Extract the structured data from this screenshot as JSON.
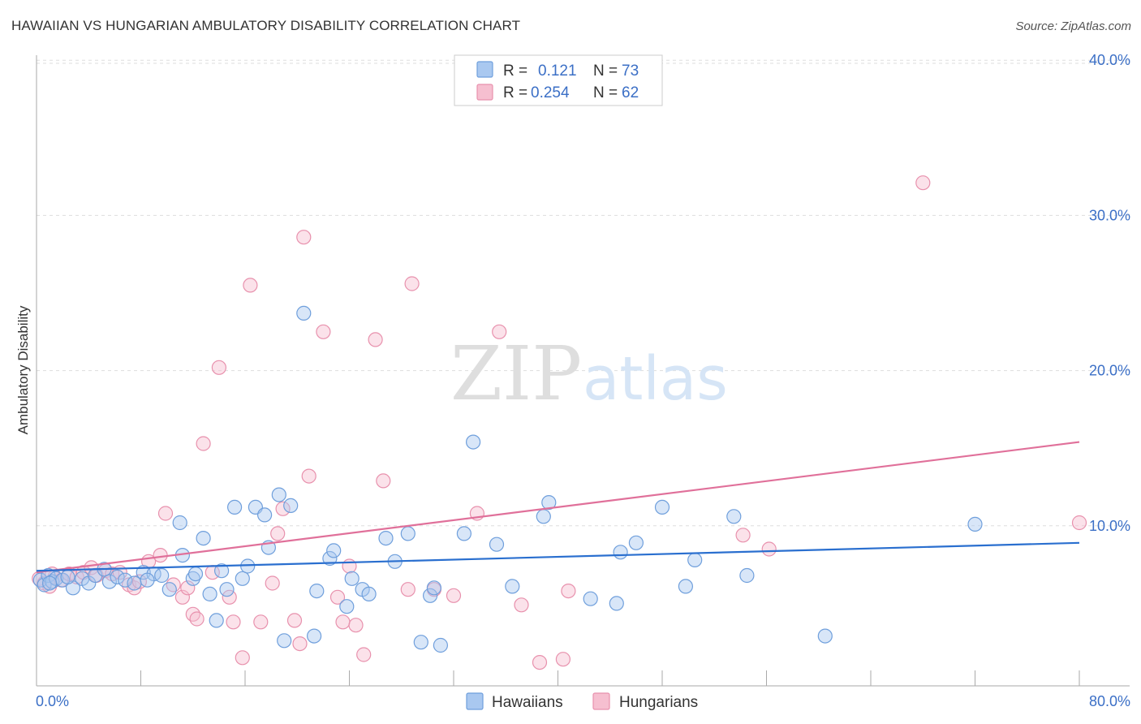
{
  "title": "HAWAIIAN VS HUNGARIAN AMBULATORY DISABILITY CORRELATION CHART",
  "source": "Source: ZipAtlas.com",
  "watermark": {
    "zip": "ZIP",
    "atlas": "atlas"
  },
  "colors": {
    "hawaiians_fill": "#a9c8f0",
    "hawaiians_stroke": "#6f9fdc",
    "hawaiians_line": "#2a6fcf",
    "hungarians_fill": "#f6bfd0",
    "hungarians_stroke": "#e891ad",
    "hungarians_line": "#e0709a",
    "tick_text": "#3b6fc6",
    "grid": "#dddddd"
  },
  "legend_top": {
    "rows": [
      {
        "r_label": "R = ",
        "r_value": "0.121",
        "n_label": "N = ",
        "n_value": "73"
      },
      {
        "r_label": "R = ",
        "r_value": "0.254",
        "n_label": "N = ",
        "n_value": "62"
      }
    ]
  },
  "legend_bottom": {
    "hawaiians": "Hawaiians",
    "hungarians": "Hungarians"
  },
  "chart_data": {
    "type": "scatter",
    "title": "HAWAIIAN VS HUNGARIAN AMBULATORY DISABILITY CORRELATION CHART",
    "xlabel": "",
    "ylabel": "Ambulatory Disability",
    "xlim": [
      0,
      80
    ],
    "ylim": [
      0,
      42
    ],
    "x_tick_labels": [
      "0.0%",
      "80.0%"
    ],
    "y_ticks": [
      10,
      20,
      30,
      40
    ],
    "y_tick_labels": [
      "10.0%",
      "20.0%",
      "30.0%",
      "40.0%"
    ],
    "grid": true,
    "legend_position": "top-center",
    "series": [
      {
        "name": "Hawaiians",
        "r": 0.121,
        "n": 73,
        "trend": [
          [
            0,
            7.1
          ],
          [
            80,
            8.9
          ]
        ],
        "points": [
          [
            0.3,
            6.5
          ],
          [
            0.6,
            6.2
          ],
          [
            0.9,
            6.8
          ],
          [
            1.2,
            6.4
          ],
          [
            1.5,
            6.6
          ],
          [
            2.0,
            6.5
          ],
          [
            2.8,
            6.0
          ],
          [
            3.5,
            6.6
          ],
          [
            4.0,
            6.3
          ],
          [
            4.5,
            6.8
          ],
          [
            5.2,
            7.2
          ],
          [
            5.6,
            6.4
          ],
          [
            6.2,
            6.7
          ],
          [
            6.8,
            6.5
          ],
          [
            7.5,
            6.3
          ],
          [
            8.2,
            7.0
          ],
          [
            9.0,
            6.9
          ],
          [
            9.6,
            6.8
          ],
          [
            10.2,
            5.9
          ],
          [
            11.0,
            10.2
          ],
          [
            11.2,
            8.1
          ],
          [
            12.0,
            6.6
          ],
          [
            12.2,
            6.9
          ],
          [
            12.8,
            9.2
          ],
          [
            13.3,
            5.6
          ],
          [
            13.8,
            3.9
          ],
          [
            14.2,
            7.1
          ],
          [
            14.6,
            5.9
          ],
          [
            15.2,
            11.2
          ],
          [
            15.8,
            6.6
          ],
          [
            16.2,
            7.4
          ],
          [
            16.8,
            11.2
          ],
          [
            17.5,
            10.7
          ],
          [
            17.8,
            8.6
          ],
          [
            18.6,
            12.0
          ],
          [
            19.0,
            2.6
          ],
          [
            19.5,
            11.3
          ],
          [
            20.5,
            23.7
          ],
          [
            21.3,
            2.9
          ],
          [
            21.5,
            5.8
          ],
          [
            22.5,
            7.9
          ],
          [
            22.8,
            8.4
          ],
          [
            23.8,
            4.8
          ],
          [
            24.2,
            6.6
          ],
          [
            25.0,
            5.9
          ],
          [
            25.5,
            5.6
          ],
          [
            26.8,
            9.2
          ],
          [
            27.5,
            7.7
          ],
          [
            28.5,
            9.5
          ],
          [
            29.5,
            2.5
          ],
          [
            30.2,
            5.5
          ],
          [
            30.5,
            6.0
          ],
          [
            31.0,
            2.3
          ],
          [
            32.8,
            9.5
          ],
          [
            33.5,
            15.4
          ],
          [
            35.3,
            8.8
          ],
          [
            36.5,
            6.1
          ],
          [
            38.9,
            10.6
          ],
          [
            39.3,
            11.5
          ],
          [
            42.5,
            5.3
          ],
          [
            44.5,
            5.0
          ],
          [
            44.8,
            8.3
          ],
          [
            46.0,
            8.9
          ],
          [
            48.0,
            11.2
          ],
          [
            49.8,
            6.1
          ],
          [
            50.5,
            7.8
          ],
          [
            53.5,
            10.6
          ],
          [
            54.5,
            6.8
          ],
          [
            60.5,
            2.9
          ],
          [
            72.0,
            10.1
          ],
          [
            1.0,
            6.3
          ],
          [
            2.4,
            6.7
          ],
          [
            8.5,
            6.5
          ]
        ]
      },
      {
        "name": "Hungarians",
        "r": 0.254,
        "n": 62,
        "trend": [
          [
            0,
            7.0
          ],
          [
            80,
            15.4
          ]
        ],
        "points": [
          [
            0.2,
            6.6
          ],
          [
            0.6,
            6.3
          ],
          [
            1.0,
            6.1
          ],
          [
            1.4,
            6.7
          ],
          [
            1.9,
            6.5
          ],
          [
            2.5,
            6.9
          ],
          [
            3.1,
            6.7
          ],
          [
            3.6,
            7.0
          ],
          [
            4.2,
            7.3
          ],
          [
            4.6,
            6.8
          ],
          [
            5.3,
            7.1
          ],
          [
            5.8,
            6.9
          ],
          [
            6.4,
            7.0
          ],
          [
            7.1,
            6.2
          ],
          [
            7.5,
            6.0
          ],
          [
            7.9,
            6.4
          ],
          [
            8.6,
            7.7
          ],
          [
            9.5,
            8.1
          ],
          [
            9.9,
            10.8
          ],
          [
            10.5,
            6.2
          ],
          [
            11.2,
            5.4
          ],
          [
            11.6,
            6.0
          ],
          [
            12.0,
            4.3
          ],
          [
            12.3,
            4.0
          ],
          [
            12.8,
            15.3
          ],
          [
            13.5,
            7.0
          ],
          [
            14.0,
            20.2
          ],
          [
            14.8,
            5.4
          ],
          [
            15.1,
            3.8
          ],
          [
            15.8,
            1.5
          ],
          [
            16.4,
            25.5
          ],
          [
            17.2,
            3.8
          ],
          [
            18.1,
            6.3
          ],
          [
            18.5,
            9.5
          ],
          [
            18.9,
            11.1
          ],
          [
            19.8,
            3.9
          ],
          [
            20.2,
            2.4
          ],
          [
            20.5,
            28.6
          ],
          [
            20.9,
            13.2
          ],
          [
            22.0,
            22.5
          ],
          [
            23.1,
            5.4
          ],
          [
            23.5,
            3.8
          ],
          [
            24.0,
            7.4
          ],
          [
            24.5,
            3.6
          ],
          [
            25.1,
            1.7
          ],
          [
            26.0,
            22.0
          ],
          [
            26.6,
            12.9
          ],
          [
            28.5,
            5.9
          ],
          [
            28.8,
            25.6
          ],
          [
            30.5,
            5.9
          ],
          [
            32.0,
            5.5
          ],
          [
            33.8,
            10.8
          ],
          [
            35.5,
            22.5
          ],
          [
            37.2,
            4.9
          ],
          [
            38.6,
            1.2
          ],
          [
            40.4,
            1.4
          ],
          [
            40.8,
            5.8
          ],
          [
            54.2,
            9.4
          ],
          [
            56.2,
            8.5
          ],
          [
            68.0,
            32.1
          ],
          [
            80.0,
            10.2
          ],
          [
            1.2,
            6.9
          ]
        ]
      }
    ]
  }
}
